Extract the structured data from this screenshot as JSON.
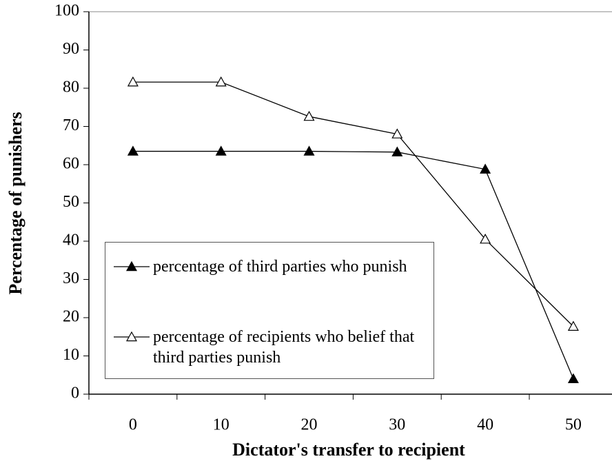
{
  "chart_data": {
    "type": "line",
    "x_label": "Dictator's transfer to recipient",
    "y_label": "Percentage of punishers",
    "categories": [
      0,
      10,
      20,
      30,
      40,
      50
    ],
    "series": [
      {
        "name": "percentage of third parties who punish",
        "color": "#000000",
        "marker": "filled-triangle",
        "values": [
          63.5,
          63.5,
          63.5,
          63.3,
          58.8,
          4
        ]
      },
      {
        "name": "percentage of recipients who belief that third parties punish",
        "color": "#000000",
        "marker": "open-triangle",
        "values": [
          81.6,
          81.6,
          72.6,
          68,
          40.5,
          17.7
        ]
      }
    ],
    "ylim": [
      0,
      100
    ],
    "yticks": [
      0,
      10,
      20,
      30,
      40,
      50,
      60,
      70,
      80,
      90,
      100
    ],
    "grid": false,
    "legend": "lower left"
  }
}
